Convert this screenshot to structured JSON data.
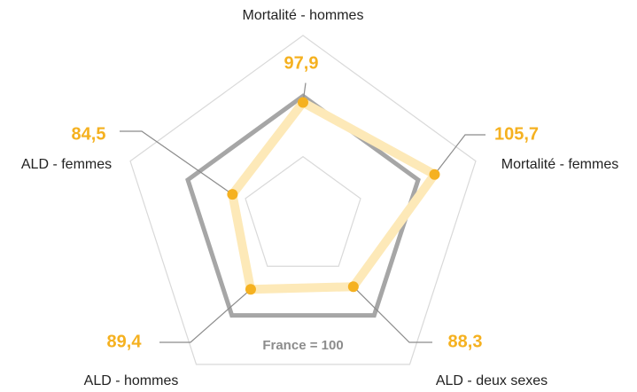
{
  "chart_data": {
    "type": "radar",
    "categories": [
      "Mortalité - hommes",
      "Mortalité - femmes",
      "ALD - deux sexes",
      "ALD - hommes",
      "ALD - femmes"
    ],
    "series": [
      {
        "name": "France = 100",
        "color": "#a6a6a6",
        "values": [
          100,
          100,
          100,
          100,
          100
        ]
      },
      {
        "color": "#f5b120",
        "values": [
          97.9,
          105.7,
          88.3,
          89.4,
          84.5
        ],
        "value_labels": [
          "97,9",
          "105,7",
          "88,3",
          "89,4",
          "84,5"
        ]
      }
    ],
    "ylim": [
      60,
      120
    ],
    "yticks": [
      80,
      100,
      120
    ],
    "grid": true
  }
}
